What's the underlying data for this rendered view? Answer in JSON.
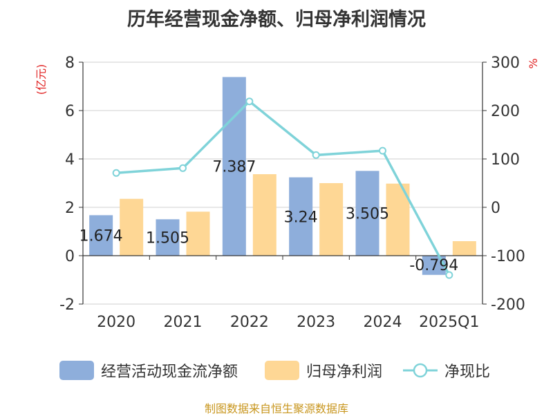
{
  "title": "历年经营现金净额、归母净利润情况",
  "source": "制图数据来自恒生聚源数据库",
  "chart_data": {
    "type": "bar",
    "categories": [
      "2020",
      "2021",
      "2022",
      "2023",
      "2024",
      "2025Q1"
    ],
    "series": [
      {
        "name": "经营活动现金流净额",
        "type": "bar",
        "axis": "left",
        "color": "#8eaedb",
        "values": [
          1.674,
          1.505,
          7.387,
          3.24,
          3.505,
          -0.794
        ],
        "labels": [
          "1.674",
          "1.505",
          "7.387",
          "3.24",
          "3.505",
          "-0.794"
        ]
      },
      {
        "name": "归母净利润",
        "type": "bar",
        "axis": "left",
        "color": "#fed795",
        "values": [
          2.35,
          1.82,
          3.37,
          3.0,
          2.98,
          0.6
        ]
      },
      {
        "name": "净现比",
        "type": "line",
        "axis": "right",
        "color": "#7fd3d9",
        "values": [
          71,
          81,
          219,
          108,
          117,
          -140
        ]
      }
    ],
    "left_axis": {
      "label": "(亿元)",
      "ylim": [
        -2,
        8
      ],
      "ticks": [
        "-2",
        "0",
        "2",
        "4",
        "6",
        "8"
      ],
      "label_color": "#e02020"
    },
    "right_axis": {
      "label": "%",
      "ylim": [
        -200,
        300
      ],
      "ticks": [
        "-200",
        "-100",
        "0",
        "100",
        "200",
        "300"
      ],
      "label_color": "#e02020"
    },
    "grid": true,
    "legend_position": "bottom"
  }
}
